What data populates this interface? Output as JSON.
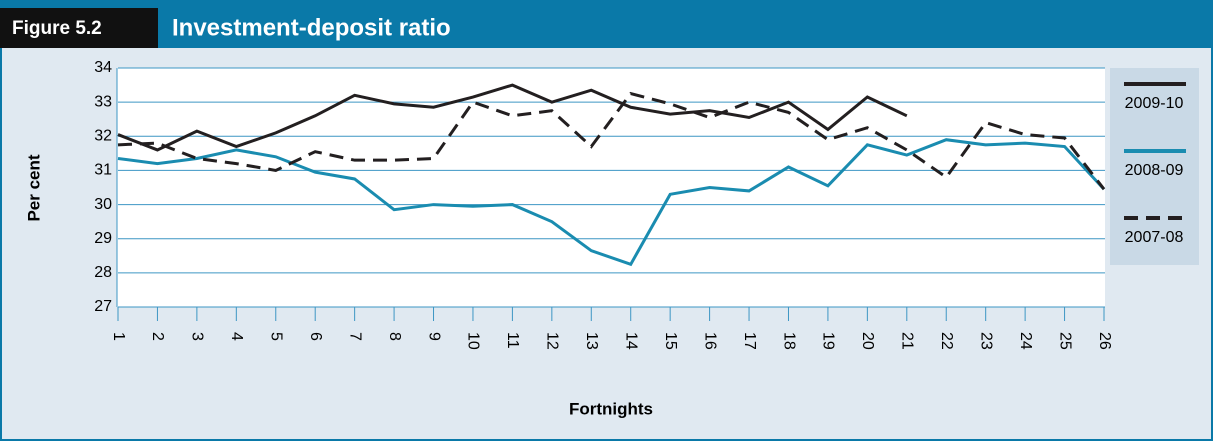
{
  "chart_data": {
    "type": "line",
    "figure_label": "Figure 5.2",
    "title": "Investment-deposit ratio",
    "x_label": "Fortnights",
    "y_label": "Per cent",
    "categories": [
      "1",
      "2",
      "3",
      "4",
      "5",
      "6",
      "7",
      "8",
      "9",
      "10",
      "11",
      "12",
      "13",
      "14",
      "15",
      "16",
      "17",
      "18",
      "19",
      "20",
      "21",
      "22",
      "23",
      "24",
      "25",
      "26"
    ],
    "ylim": [
      27,
      34
    ],
    "yticks": [
      27,
      28,
      29,
      30,
      31,
      32,
      33,
      34
    ],
    "grid": true,
    "legend": "right",
    "series": [
      {
        "name": "2009-10",
        "color": "#231f20",
        "dashed": false,
        "values": [
          32.05,
          31.6,
          32.15,
          31.7,
          32.1,
          32.6,
          33.2,
          32.95,
          32.85,
          33.15,
          33.5,
          33.0,
          33.35,
          32.85,
          32.65,
          32.75,
          32.55,
          33.0,
          32.2,
          33.15,
          32.6,
          null,
          null,
          null,
          null,
          null
        ]
      },
      {
        "name": "2008-09",
        "color": "#1a8cb0",
        "dashed": false,
        "values": [
          31.35,
          31.2,
          31.35,
          31.6,
          31.4,
          30.95,
          30.75,
          29.85,
          30.0,
          29.95,
          30.0,
          29.5,
          28.65,
          28.25,
          30.3,
          30.5,
          30.4,
          31.1,
          30.55,
          31.75,
          31.45,
          31.9,
          31.75,
          31.8,
          31.7,
          30.45
        ]
      },
      {
        "name": "2007-08",
        "color": "#231f20",
        "dashed": true,
        "values": [
          31.75,
          31.8,
          31.35,
          31.2,
          31.0,
          31.55,
          31.3,
          31.3,
          31.35,
          33.0,
          32.6,
          32.75,
          31.7,
          33.25,
          32.95,
          32.55,
          33.0,
          32.7,
          31.9,
          32.25,
          31.6,
          30.8,
          32.4,
          32.05,
          31.95,
          30.45
        ]
      }
    ]
  }
}
